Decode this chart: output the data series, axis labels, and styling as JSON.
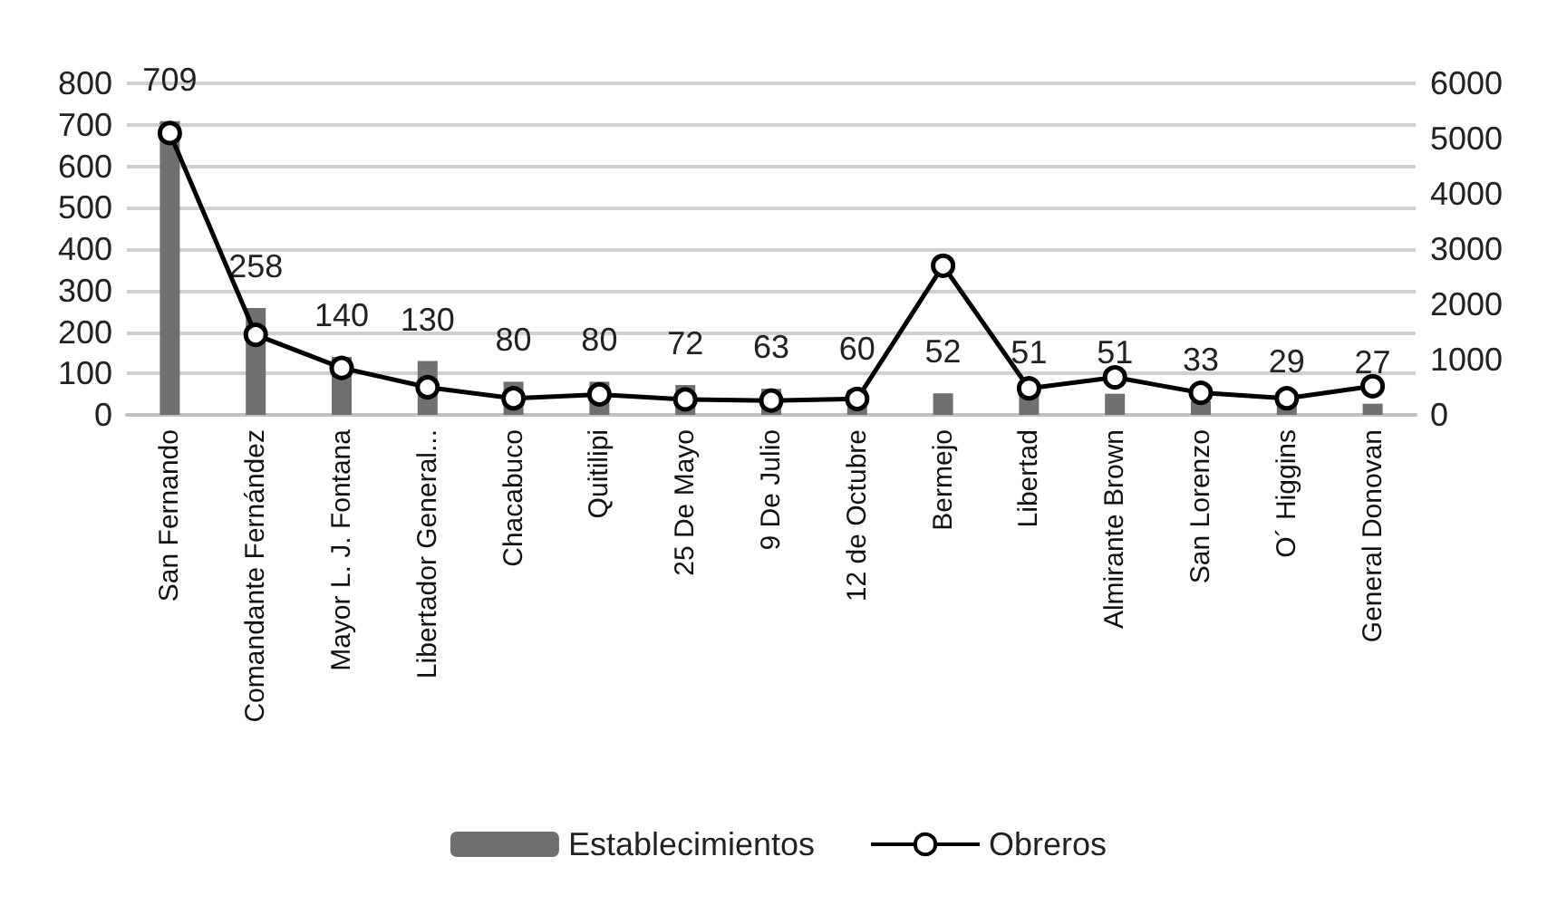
{
  "chart_data": {
    "type": "bar",
    "categories": [
      "San Fernando",
      "Comandante Fernández",
      "Mayor L. J. Fontana",
      "Libertador General...",
      "Chacabuco",
      "Quitilipi",
      "25 De Mayo",
      "9 De Julio",
      "12 de Octubre",
      "Bermejo",
      "Libertad",
      "Almirante Brown",
      "San Lorenzo",
      "O´ Higgins",
      "General Donovan"
    ],
    "series": [
      {
        "name": "Establecimientos",
        "color": "#707070",
        "values": [
          709,
          258,
          140,
          130,
          80,
          80,
          72,
          63,
          60,
          52,
          51,
          51,
          33,
          29,
          27
        ],
        "data_labels": true
      },
      {
        "name": "Obreros",
        "type": "line",
        "axis": "y2",
        "color": "#000000",
        "values": [
          5100,
          1450,
          850,
          500,
          300,
          370,
          280,
          260,
          290,
          2700,
          480,
          680,
          400,
          300,
          520
        ]
      }
    ],
    "ylim": [
      0,
      800
    ],
    "yticks": [
      0,
      100,
      200,
      300,
      400,
      500,
      600,
      700,
      800
    ],
    "y2lim": [
      0,
      6000
    ],
    "y2ticks": [
      0,
      1000,
      2000,
      3000,
      4000,
      5000,
      6000
    ],
    "grid": "y",
    "legend": "bottom",
    "marker": "circle",
    "line_style": "solid"
  }
}
